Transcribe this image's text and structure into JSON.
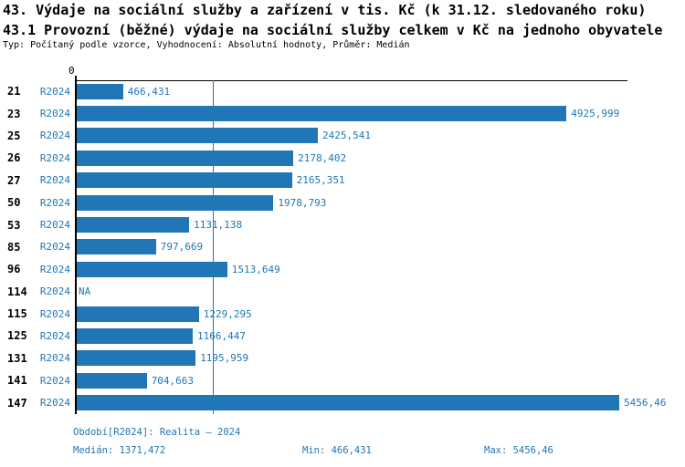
{
  "title": "43. Výdaje na sociální služby a zařízení v tis. Kč (k 31.12. sledovaného roku)",
  "subtitle": "43.1 Provozní (běžné) výdaje na sociální služby celkem v Kč na jednoho obyvatele",
  "meta": "Typ: Počítaný podle vzorce, Vyhodnocení: Absolutní hodnoty, Průměr: Medián",
  "axis": {
    "zero_label": "0"
  },
  "colors": {
    "bar": "#2177B5",
    "value_text": "#2177B5",
    "series_text": "#2177B5",
    "median_line": "#2177B5",
    "axis_line": "#000000",
    "title_text": "#000000",
    "footer_text": "#2177B5",
    "background": "#FFFFFF"
  },
  "chart_data": {
    "type": "bar",
    "orientation": "horizontal",
    "title": "43. Výdaje na sociální služby a zařízení v tis. Kč (k 31.12. sledovaného roku)",
    "subtitle": "43.1 Provozní (běžné) výdaje na sociální služby celkem v Kč na jednoho obyvatele",
    "series_label": "R2024",
    "categories": [
      "21",
      "23",
      "25",
      "26",
      "27",
      "50",
      "53",
      "85",
      "96",
      "114",
      "115",
      "125",
      "131",
      "141",
      "147"
    ],
    "values": [
      466.431,
      4925.999,
      2425.541,
      2178.402,
      2165.351,
      1978.793,
      1131.138,
      797.669,
      1513.649,
      null,
      1229.295,
      1166.447,
      1195.959,
      704.663,
      5456.46
    ],
    "value_labels": [
      "466,431",
      "4925,999",
      "2425,541",
      "2178,402",
      "2165,351",
      "1978,793",
      "1131,138",
      "797,669",
      "1513,649",
      "NA",
      "1229,295",
      "1166,447",
      "1195,959",
      "704,663",
      "5456,46"
    ],
    "xlim": [
      0,
      5456.46
    ],
    "median": 1371.472,
    "min": 466.431,
    "max": 5456.46,
    "grid": false,
    "legend_position": "none"
  },
  "footer": {
    "period": "Období[R2024]: Realita – 2024",
    "median": "Medián: 1371,472",
    "min": "Min: 466,431",
    "max": "Max: 5456,46"
  }
}
